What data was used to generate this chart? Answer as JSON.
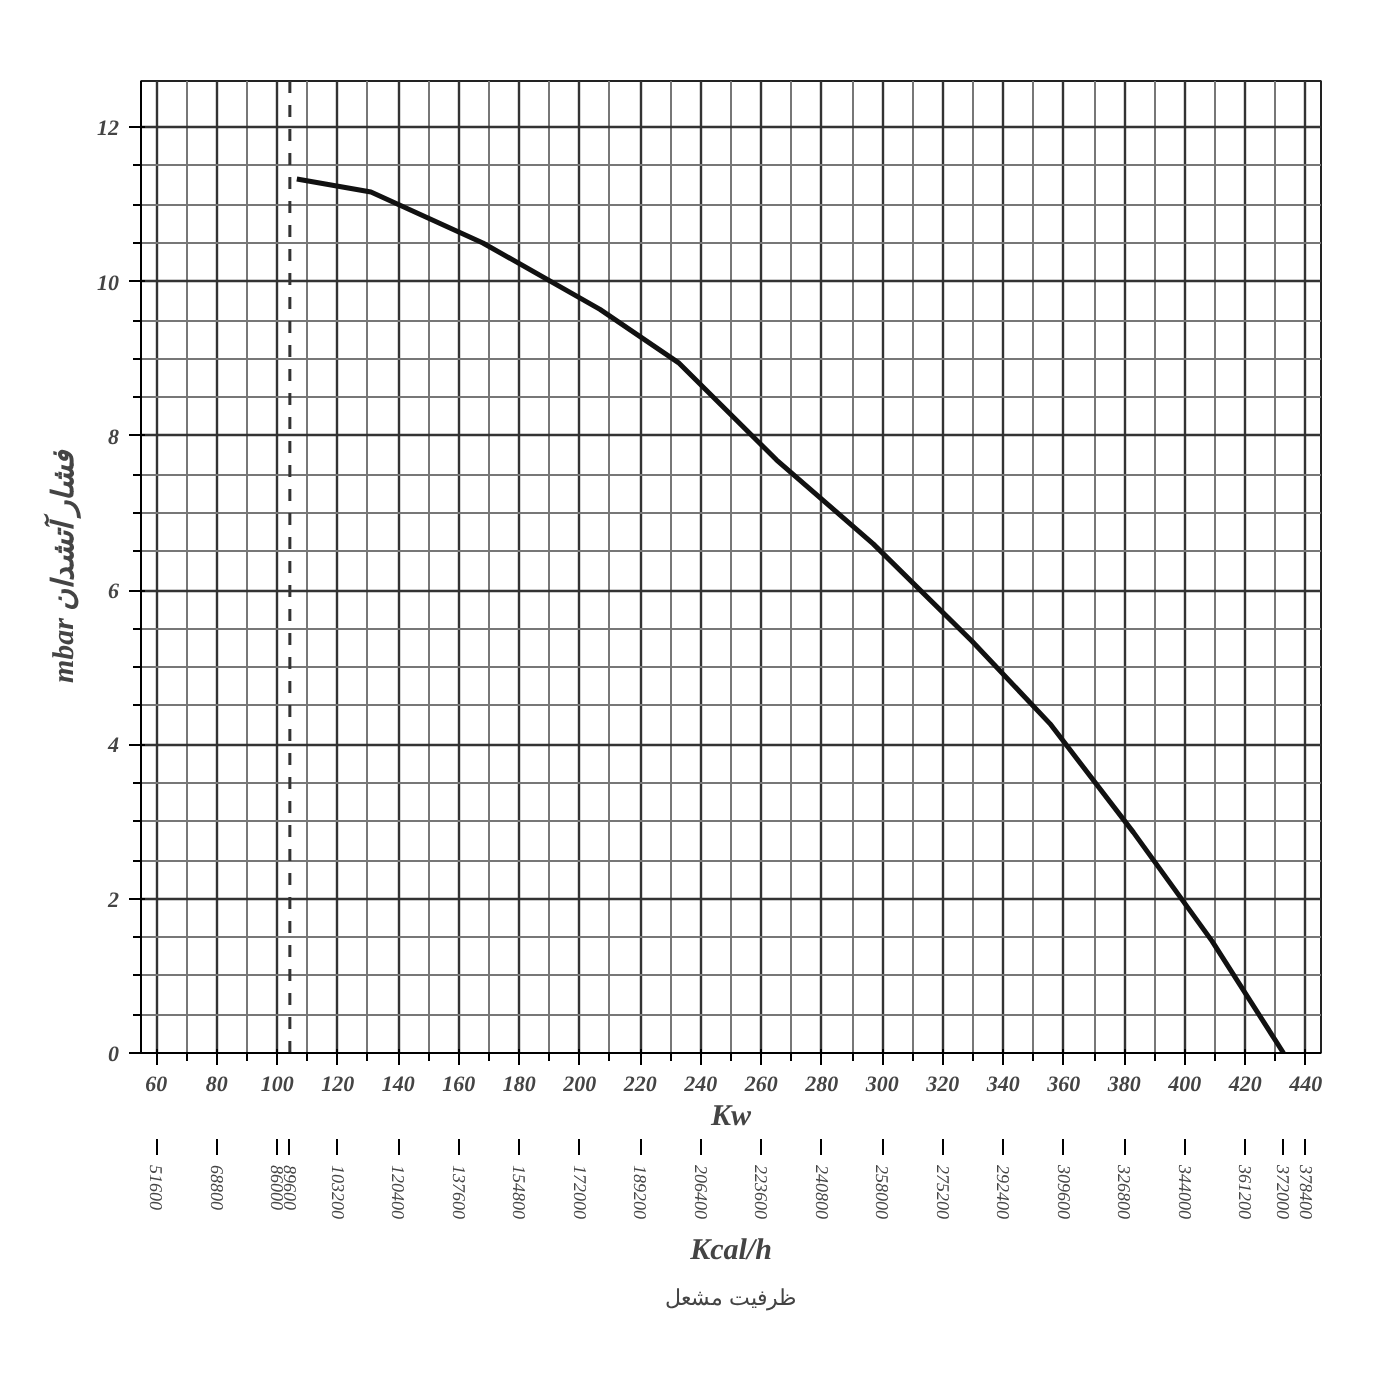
{
  "chart_data": {
    "type": "line",
    "xlabel": "Kw",
    "x2label": "Kcal/h",
    "ylabel": "mbar فشار آتشدان",
    "annotations": [
      "ظرفیت مشعل"
    ],
    "x": [
      106.5,
      131,
      168,
      206.7,
      232.6,
      265,
      297,
      329.6,
      355.4,
      383,
      409,
      432.6
    ],
    "series": [
      {
        "color": "#111111",
        "values": [
          11.33,
          11.16,
          10.5,
          9.64,
          8.95,
          7.69,
          6.6,
          5.34,
          4.27,
          2.86,
          1.45,
          0
        ]
      }
    ],
    "xlim": [
      55,
      445
    ],
    "xticks": [
      60,
      80,
      100,
      120,
      140,
      160,
      180,
      200,
      220,
      240,
      260,
      280,
      300,
      320,
      340,
      360,
      380,
      400,
      420,
      440
    ],
    "x2lim": [
      47300,
      382700
    ],
    "x2ticks": [
      51600,
      68800,
      86000,
      89600,
      103200,
      120400,
      137600,
      154800,
      172000,
      189200,
      206400,
      223600,
      240800,
      258000,
      275200,
      292400,
      309600,
      326800,
      344000,
      361200,
      372000,
      378400
    ],
    "ylim": [
      0,
      12.6
    ],
    "yticks": [
      0,
      2,
      4,
      6,
      8,
      10,
      12
    ],
    "ref_lines": [
      {
        "axis": "x",
        "value": 104.2,
        "line_style": "dashed"
      }
    ],
    "grid": true,
    "marker": "none",
    "line_style": "solid"
  }
}
